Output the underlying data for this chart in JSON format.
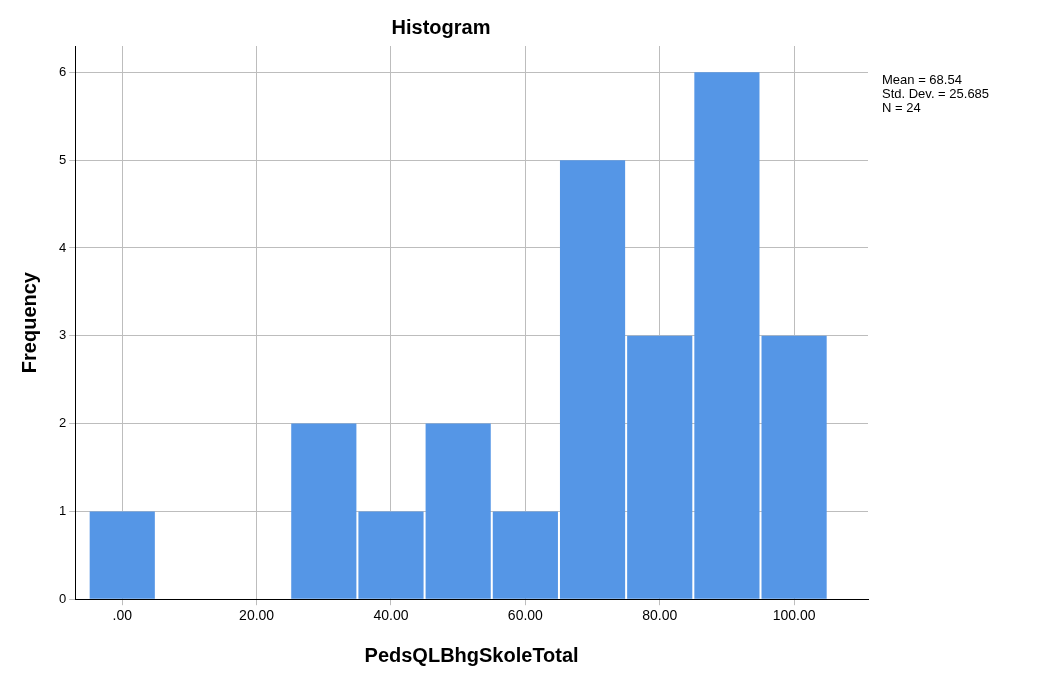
{
  "chart_data": {
    "type": "histogram",
    "title": "Histogram",
    "xlabel": "PedsQLBhgSkoleTotal",
    "ylabel": "Frequency",
    "bins": [
      -5,
      5,
      15,
      25,
      35,
      45,
      55,
      65,
      75,
      85,
      95,
      105
    ],
    "values": [
      1,
      0,
      0,
      2,
      1,
      2,
      1,
      5,
      3,
      6,
      3
    ],
    "color": "#5596e6",
    "xlim": [
      -7,
      111
    ],
    "xticks": [
      {
        "value": 0,
        "label": ".00"
      },
      {
        "value": 20,
        "label": "20.00"
      },
      {
        "value": 40,
        "label": "40.00"
      },
      {
        "value": 60,
        "label": "60.00"
      },
      {
        "value": 80,
        "label": "80.00"
      },
      {
        "value": 100,
        "label": "100.00"
      }
    ],
    "ylim": [
      0,
      6.3
    ],
    "yticks": [
      0,
      1,
      2,
      3,
      4,
      5,
      6
    ],
    "grid": true,
    "annotations": [
      "Mean = 68.54",
      "Std. Dev. = 25.685",
      "N = 24"
    ]
  }
}
